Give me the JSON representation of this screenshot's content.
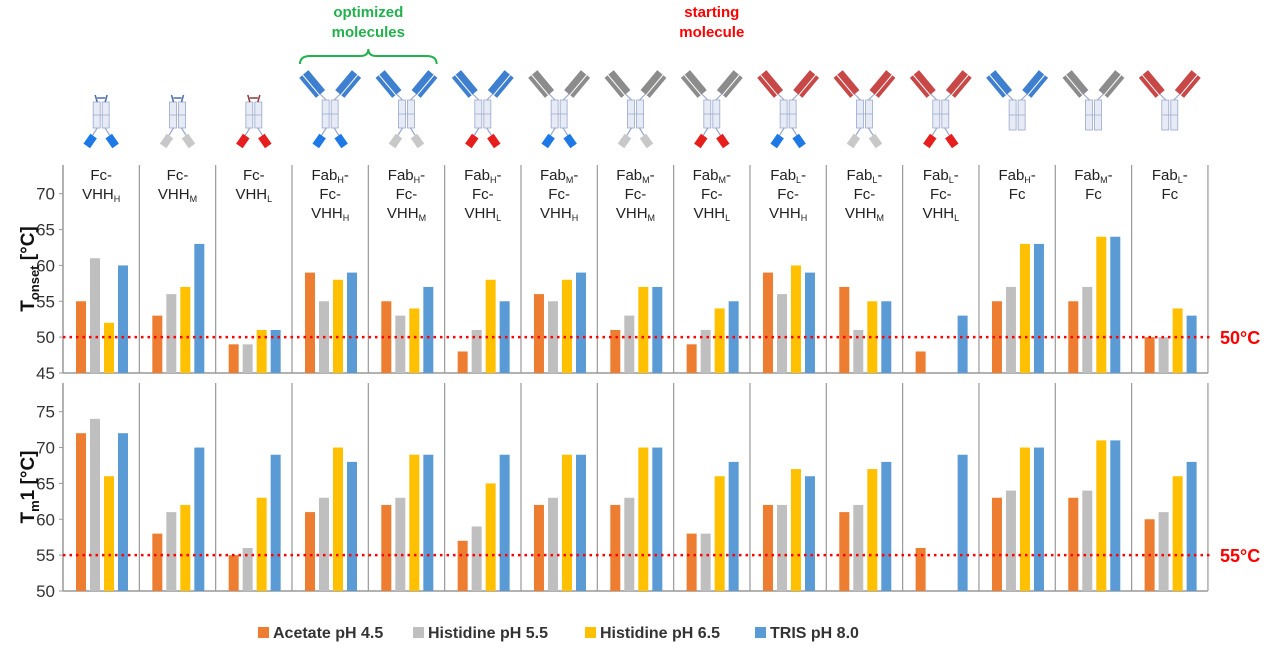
{
  "chart_data": {
    "type": "bar",
    "legend": {
      "placement": "bottom",
      "entries": [
        "Acetate pH 4.5",
        "Histidine pH 5.5",
        "Histidine pH 6.5",
        "TRIS pH 8.0"
      ]
    },
    "series_colors": [
      "#ED7D31",
      "#BFBFBF",
      "#FFC000",
      "#5B9BD5"
    ],
    "categories": [
      [
        {
          "main": "Fc-"
        },
        {
          "main": "VHH",
          "sub": "H"
        }
      ],
      [
        {
          "main": "Fc-"
        },
        {
          "main": "VHH",
          "sub": "M"
        }
      ],
      [
        {
          "main": "Fc-"
        },
        {
          "main": "VHH",
          "sub": "L"
        }
      ],
      [
        {
          "main": "Fab",
          "sub": "H",
          "tail": "-"
        },
        {
          "main": "Fc-"
        },
        {
          "main": "VHH",
          "sub": "H"
        }
      ],
      [
        {
          "main": "Fab",
          "sub": "H",
          "tail": "-"
        },
        {
          "main": "Fc-"
        },
        {
          "main": "VHH",
          "sub": "M"
        }
      ],
      [
        {
          "main": "Fab",
          "sub": "H",
          "tail": "-"
        },
        {
          "main": "Fc-"
        },
        {
          "main": "VHH",
          "sub": "L"
        }
      ],
      [
        {
          "main": "Fab",
          "sub": "M",
          "tail": "-"
        },
        {
          "main": "Fc-"
        },
        {
          "main": "VHH",
          "sub": "H"
        }
      ],
      [
        {
          "main": "Fab",
          "sub": "M",
          "tail": "-"
        },
        {
          "main": "Fc-"
        },
        {
          "main": "VHH",
          "sub": "M"
        }
      ],
      [
        {
          "main": "Fab",
          "sub": "M",
          "tail": "-"
        },
        {
          "main": "Fc-"
        },
        {
          "main": "VHH",
          "sub": "L"
        }
      ],
      [
        {
          "main": "Fab",
          "sub": "L",
          "tail": "-"
        },
        {
          "main": "Fc-"
        },
        {
          "main": "VHH",
          "sub": "H"
        }
      ],
      [
        {
          "main": "Fab",
          "sub": "L",
          "tail": "-"
        },
        {
          "main": "Fc-"
        },
        {
          "main": "VHH",
          "sub": "M"
        }
      ],
      [
        {
          "main": "Fab",
          "sub": "L",
          "tail": "-"
        },
        {
          "main": "Fc-"
        },
        {
          "main": "VHH",
          "sub": "L"
        }
      ],
      [
        {
          "main": "Fab",
          "sub": "H",
          "tail": "-"
        },
        {
          "main": "Fc"
        }
      ],
      [
        {
          "main": "Fab",
          "sub": "M",
          "tail": "-"
        },
        {
          "main": "Fc"
        }
      ],
      [
        {
          "main": "Fab",
          "sub": "L",
          "tail": "-"
        },
        {
          "main": "Fc"
        }
      ]
    ],
    "molecule_icons": [
      {
        "fab": null,
        "vhh": "H"
      },
      {
        "fab": null,
        "vhh": "M"
      },
      {
        "fab": null,
        "vhh": "L"
      },
      {
        "fab": "H",
        "vhh": "H"
      },
      {
        "fab": "H",
        "vhh": "M"
      },
      {
        "fab": "H",
        "vhh": "L"
      },
      {
        "fab": "M",
        "vhh": "H"
      },
      {
        "fab": "M",
        "vhh": "M"
      },
      {
        "fab": "M",
        "vhh": "L"
      },
      {
        "fab": "L",
        "vhh": "H"
      },
      {
        "fab": "L",
        "vhh": "M"
      },
      {
        "fab": "L",
        "vhh": "L"
      },
      {
        "fab": "H",
        "vhh": null
      },
      {
        "fab": "M",
        "vhh": null
      },
      {
        "fab": "L",
        "vhh": null
      }
    ],
    "domain_colors": {
      "H": "#3F7FD0",
      "M": "#8C8C8C",
      "L": "#C84848",
      "VHH_H": "#1E78E6",
      "VHH_M": "#C8C8C8",
      "VHH_L": "#E61E1E"
    },
    "panels": [
      {
        "ylabel_main": "T",
        "ylabel_sub": "onset",
        "ylabel_tail": " [°C]",
        "ylim": [
          45,
          74
        ],
        "yticks": [
          45,
          50,
          55,
          60,
          65,
          70
        ],
        "threshold": 50,
        "threshold_label": "50°C",
        "series": [
          {
            "name": "Acetate pH 4.5",
            "values": [
              55,
              53,
              49,
              59,
              55,
              48,
              56,
              51,
              49,
              59,
              57,
              48,
              55,
              55,
              50
            ]
          },
          {
            "name": "Histidine pH 5.5",
            "values": [
              61,
              56,
              49,
              55,
              53,
              51,
              55,
              53,
              51,
              56,
              51,
              null,
              57,
              57,
              50
            ]
          },
          {
            "name": "Histidine pH 6.5",
            "values": [
              52,
              57,
              51,
              58,
              54,
              58,
              58,
              57,
              54,
              60,
              55,
              null,
              63,
              64,
              54
            ]
          },
          {
            "name": "TRIS pH 8.0",
            "values": [
              60,
              63,
              51,
              59,
              57,
              55,
              59,
              57,
              55,
              59,
              55,
              53,
              63,
              64,
              53
            ]
          }
        ]
      },
      {
        "ylabel_main": "T",
        "ylabel_sub": "m",
        "ylabel_tail": "1 [°C]",
        "ylim": [
          50,
          79
        ],
        "yticks": [
          50,
          55,
          60,
          65,
          70,
          75
        ],
        "threshold": 55,
        "threshold_label": "55°C",
        "series": [
          {
            "name": "Acetate pH 4.5",
            "values": [
              72,
              58,
              55,
              61,
              62,
              57,
              62,
              62,
              58,
              62,
              61,
              56,
              63,
              63,
              60
            ]
          },
          {
            "name": "Histidine pH 5.5",
            "values": [
              74,
              61,
              56,
              63,
              63,
              59,
              63,
              63,
              58,
              62,
              62,
              null,
              64,
              64,
              61
            ]
          },
          {
            "name": "Histidine pH 6.5",
            "values": [
              66,
              62,
              63,
              70,
              69,
              65,
              69,
              70,
              66,
              67,
              67,
              null,
              70,
              71,
              66
            ]
          },
          {
            "name": "TRIS pH 8.0",
            "values": [
              72,
              70,
              69,
              68,
              69,
              69,
              69,
              70,
              68,
              66,
              68,
              69,
              70,
              71,
              68
            ]
          }
        ]
      }
    ],
    "annotations": [
      {
        "text_lines": [
          "optimized",
          "molecules"
        ],
        "color": "#22B14C",
        "groups": [
          3,
          4
        ]
      },
      {
        "text_lines": [
          "starting",
          "molecule"
        ],
        "color": "#FF0000",
        "groups": [
          8
        ]
      }
    ]
  }
}
